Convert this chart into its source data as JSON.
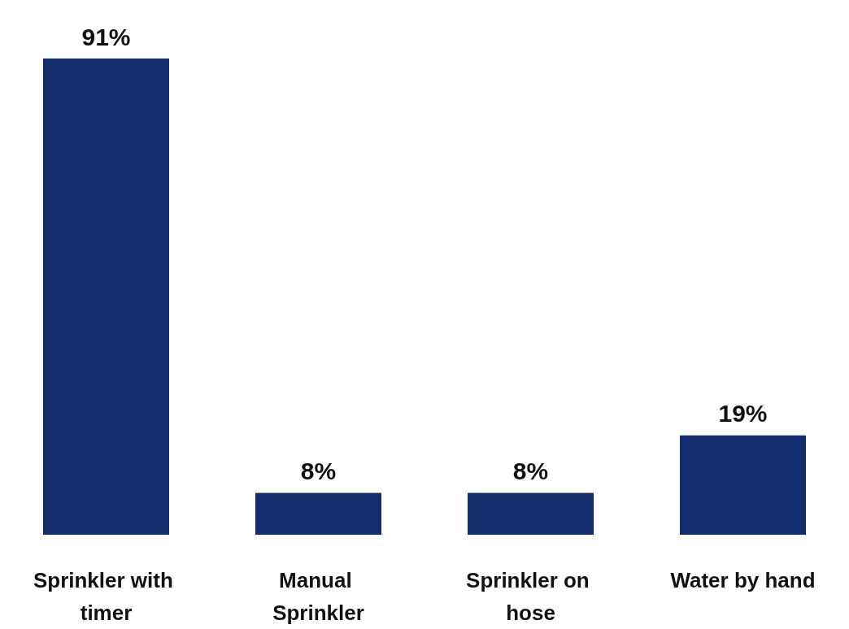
{
  "chart_data": {
    "type": "bar",
    "categories": [
      "Sprinkler with timer",
      "Manual Sprinkler",
      "Sprinkler on hose",
      "Water by hand"
    ],
    "values": [
      91,
      8,
      8,
      19
    ],
    "value_labels": [
      "91%",
      "8%",
      "8%",
      "19%"
    ],
    "color": "#142d6e"
  }
}
